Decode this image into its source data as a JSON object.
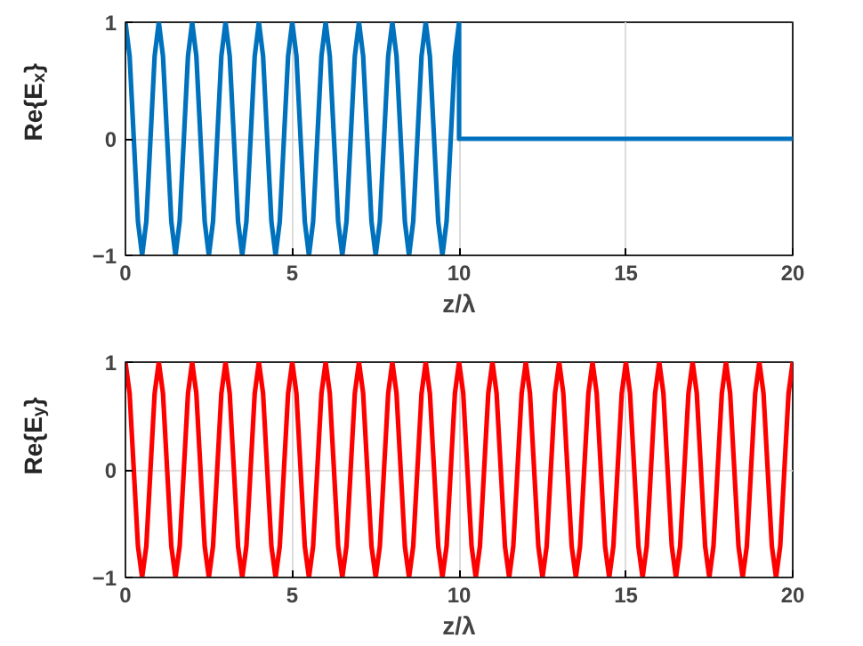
{
  "chart_data": [
    {
      "type": "line",
      "xlabel": "z/λ",
      "ylabel": "Re{E$_{x}$}",
      "xlim": [
        0,
        20
      ],
      "ylim": [
        -1,
        1
      ],
      "xticks": [
        0,
        5,
        10,
        15,
        20
      ],
      "yticks": [
        -1,
        0,
        1
      ],
      "grid": true,
      "series": [
        {
          "color": "#0072bd",
          "x": [
            0,
            0.125,
            0.25,
            0.375,
            0.5,
            0.625,
            0.75,
            0.875,
            1,
            1.125,
            1.25,
            1.375,
            1.5,
            1.625,
            1.75,
            1.875,
            2,
            2.125,
            2.25,
            2.375,
            2.5,
            2.625,
            2.75,
            2.875,
            3,
            3.125,
            3.25,
            3.375,
            3.5,
            3.625,
            3.75,
            3.875,
            4,
            4.125,
            4.25,
            4.375,
            4.5,
            4.625,
            4.75,
            4.875,
            5,
            5.125,
            5.25,
            5.375,
            5.5,
            5.625,
            5.75,
            5.875,
            6,
            6.125,
            6.25,
            6.375,
            6.5,
            6.625,
            6.75,
            6.875,
            7,
            7.125,
            7.25,
            7.375,
            7.5,
            7.625,
            7.75,
            7.875,
            8,
            8.125,
            8.25,
            8.375,
            8.5,
            8.625,
            8.75,
            8.875,
            9,
            9.125,
            9.25,
            9.375,
            9.5,
            9.625,
            9.75,
            9.875,
            10,
            10,
            20
          ],
          "values": [
            1,
            0.71,
            0,
            -0.71,
            -1,
            -0.71,
            0,
            0.71,
            1,
            0.71,
            0,
            -0.71,
            -1,
            -0.71,
            0,
            0.71,
            1,
            0.71,
            0,
            -0.71,
            -1,
            -0.71,
            0,
            0.71,
            1,
            0.71,
            0,
            -0.71,
            -1,
            -0.71,
            0,
            0.71,
            1,
            0.71,
            0,
            -0.71,
            -1,
            -0.71,
            0,
            0.71,
            1,
            0.71,
            0,
            -0.71,
            -1,
            -0.71,
            0,
            0.71,
            1,
            0.71,
            0,
            -0.71,
            -1,
            -0.71,
            0,
            0.71,
            1,
            0.71,
            0,
            -0.71,
            -1,
            -0.71,
            0,
            0.71,
            1,
            0.71,
            0,
            -0.71,
            -1,
            -0.71,
            0,
            0.71,
            1,
            0.71,
            0,
            -0.71,
            -1,
            -0.71,
            0,
            0.71,
            1,
            0,
            0
          ]
        }
      ]
    },
    {
      "type": "line",
      "xlabel": "z/λ",
      "ylabel": "Re{E$_{y}$}",
      "xlim": [
        0,
        20
      ],
      "ylim": [
        -1,
        1
      ],
      "xticks": [
        0,
        5,
        10,
        15,
        20
      ],
      "yticks": [
        -1,
        0,
        1
      ],
      "grid": true,
      "series": [
        {
          "color": "#ff0000",
          "x": [
            0,
            0.125,
            0.25,
            0.375,
            0.5,
            0.625,
            0.75,
            0.875,
            1,
            1.125,
            1.25,
            1.375,
            1.5,
            1.625,
            1.75,
            1.875,
            2,
            2.125,
            2.25,
            2.375,
            2.5,
            2.625,
            2.75,
            2.875,
            3,
            3.125,
            3.25,
            3.375,
            3.5,
            3.625,
            3.75,
            3.875,
            4,
            4.125,
            4.25,
            4.375,
            4.5,
            4.625,
            4.75,
            4.875,
            5,
            5.125,
            5.25,
            5.375,
            5.5,
            5.625,
            5.75,
            5.875,
            6,
            6.125,
            6.25,
            6.375,
            6.5,
            6.625,
            6.75,
            6.875,
            7,
            7.125,
            7.25,
            7.375,
            7.5,
            7.625,
            7.75,
            7.875,
            8,
            8.125,
            8.25,
            8.375,
            8.5,
            8.625,
            8.75,
            8.875,
            9,
            9.125,
            9.25,
            9.375,
            9.5,
            9.625,
            9.75,
            9.875,
            10,
            10.125,
            10.25,
            10.375,
            10.5,
            10.625,
            10.75,
            10.875,
            11,
            11.125,
            11.25,
            11.375,
            11.5,
            11.625,
            11.75,
            11.875,
            12,
            12.125,
            12.25,
            12.375,
            12.5,
            12.625,
            12.75,
            12.875,
            13,
            13.125,
            13.25,
            13.375,
            13.5,
            13.625,
            13.75,
            13.875,
            14,
            14.125,
            14.25,
            14.375,
            14.5,
            14.625,
            14.75,
            14.875,
            15,
            15.125,
            15.25,
            15.375,
            15.5,
            15.625,
            15.75,
            15.875,
            16,
            16.125,
            16.25,
            16.375,
            16.5,
            16.625,
            16.75,
            16.875,
            17,
            17.125,
            17.25,
            17.375,
            17.5,
            17.625,
            17.75,
            17.875,
            18,
            18.125,
            18.25,
            18.375,
            18.5,
            18.625,
            18.75,
            18.875,
            19,
            19.125,
            19.25,
            19.375,
            19.5,
            19.625,
            19.75,
            19.875,
            20
          ],
          "values": [
            1,
            0.71,
            0,
            -0.71,
            -1,
            -0.71,
            0,
            0.71,
            1,
            0.71,
            0,
            -0.71,
            -1,
            -0.71,
            0,
            0.71,
            1,
            0.71,
            0,
            -0.71,
            -1,
            -0.71,
            0,
            0.71,
            1,
            0.71,
            0,
            -0.71,
            -1,
            -0.71,
            0,
            0.71,
            1,
            0.71,
            0,
            -0.71,
            -1,
            -0.71,
            0,
            0.71,
            1,
            0.71,
            0,
            -0.71,
            -1,
            -0.71,
            0,
            0.71,
            1,
            0.71,
            0,
            -0.71,
            -1,
            -0.71,
            0,
            0.71,
            1,
            0.71,
            0,
            -0.71,
            -1,
            -0.71,
            0,
            0.71,
            1,
            0.71,
            0,
            -0.71,
            -1,
            -0.71,
            0,
            0.71,
            1,
            0.71,
            0,
            -0.71,
            -1,
            -0.71,
            0,
            0.71,
            1,
            0.71,
            0,
            -0.71,
            -1,
            -0.71,
            0,
            0.71,
            1,
            0.71,
            0,
            -0.71,
            -1,
            -0.71,
            0,
            0.71,
            1,
            0.71,
            0,
            -0.71,
            -1,
            -0.71,
            0,
            0.71,
            1,
            0.71,
            0,
            -0.71,
            -1,
            -0.71,
            0,
            0.71,
            1,
            0.71,
            0,
            -0.71,
            -1,
            -0.71,
            0,
            0.71,
            1,
            0.71,
            0,
            -0.71,
            -1,
            -0.71,
            0,
            0.71,
            1,
            0.71,
            0,
            -0.71,
            -1,
            -0.71,
            0,
            0.71,
            1,
            0.71,
            0,
            -0.71,
            -1,
            -0.71,
            0,
            0.71,
            1,
            0.71,
            0,
            -0.71,
            -1,
            -0.71,
            0,
            0.71,
            1,
            0.71,
            0,
            -0.71,
            -1,
            -0.71,
            0,
            0.71,
            1
          ]
        }
      ]
    }
  ]
}
